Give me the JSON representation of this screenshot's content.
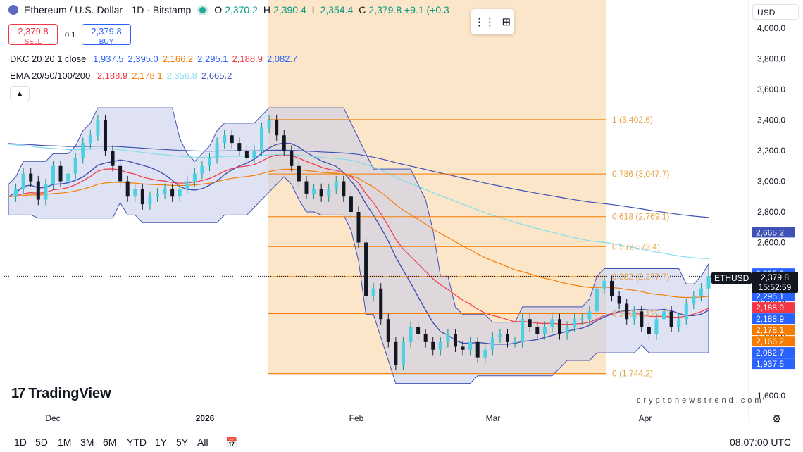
{
  "header": {
    "symbol": "Ethereum / U.S. Dollar · 1D · Bitstamp",
    "ohlc": [
      {
        "label": "O",
        "value": "2,370.2"
      },
      {
        "label": "H",
        "value": "2,390.4"
      },
      {
        "label": "L",
        "value": "2,354.4"
      },
      {
        "label": "C",
        "value": "2,379.8 +9.1 (+0.3"
      }
    ]
  },
  "trade": {
    "sell_price": "2,379.8",
    "sell_label": "SELL",
    "spread": "0.1",
    "buy_price": "2,379.8",
    "buy_label": "BUY"
  },
  "indicators": {
    "dkc": {
      "name": "DKC 20 20 1 close",
      "values": [
        "1,937.5",
        "2,395.0",
        "2,166.2",
        "2,295.1",
        "2,188.9",
        "2,082.7"
      ],
      "colors": [
        "#2962ff",
        "#2962ff",
        "#f57c00",
        "#2962ff",
        "#f23645",
        "#2962ff"
      ]
    },
    "ema": {
      "name": "EMA 20/50/100/200",
      "values": [
        "2,188.9",
        "2,178.1",
        "2,356.8",
        "2,665.2"
      ],
      "colors": [
        "#f23645",
        "#f57c00",
        "#80deea",
        "#3f51b5"
      ]
    }
  },
  "currency": "USD",
  "colors": {
    "up": "#089981",
    "down": "#131722",
    "accent": "#2962ff",
    "band_fill": "#c5cae9",
    "fib_zone": "#fbe2c0"
  },
  "chart_data": {
    "type": "candlestick",
    "x_ticks": [
      "Dec",
      "2026",
      "Feb",
      "Mar",
      "Apr"
    ],
    "ylim": [
      1600,
      4100
    ],
    "y_ticks": [
      "1,600.0",
      "1,800.0",
      "2,000.0",
      "2,200.0",
      "2,400.0",
      "2,600.0",
      "2,800.0",
      "3,000.0",
      "3,200.0",
      "3,400.0",
      "3,600.0",
      "3,800.0",
      "4,000.0"
    ],
    "y_tick_values": [
      1600,
      1800,
      2000,
      2200,
      2400,
      2600,
      2800,
      3000,
      3200,
      3400,
      3600,
      3800,
      4000
    ],
    "fib_levels": [
      {
        "label": "1 (3,402.6)",
        "value": 3402.6
      },
      {
        "label": "0.786 (3,047.7)",
        "value": 3047.7
      },
      {
        "label": "0.618 (2,769.1)",
        "value": 2769.1
      },
      {
        "label": "0.5 (2,573.4)",
        "value": 2573.4
      },
      {
        "label": "0.382 (2,377.7)",
        "value": 2377.7
      },
      {
        "label": "0.236 (2,135.6)",
        "value": 2135.6
      },
      {
        "label": "0 (1,744.2)",
        "value": 1744.2
      }
    ],
    "last_price": 2379.8,
    "countdown": "15:52:59",
    "symbol_tag": "ETHUSD",
    "price_tags": [
      {
        "label": "2,665.2",
        "value": 2665.2,
        "bg": "#3f51b5",
        "fg": "#ffffff"
      },
      {
        "label": "2,395.0",
        "value": 2395.0,
        "bg": "#2962ff",
        "fg": "#ffffff"
      },
      {
        "label": "2,356.8",
        "value": 2356.8,
        "bg": "#b2ebf2",
        "fg": "#131722"
      },
      {
        "label": "2,295.1",
        "value": 2295.1,
        "bg": "#2962ff",
        "fg": "#ffffff"
      },
      {
        "label": "2,188.9",
        "value": 2188.9,
        "bg": "#f23645",
        "fg": "#ffffff"
      },
      {
        "label": "2,188.9",
        "value": 2188.9,
        "bg": "#2962ff",
        "fg": "#ffffff"
      },
      {
        "label": "2,178.1",
        "value": 2178.1,
        "bg": "#f57c00",
        "fg": "#ffffff"
      },
      {
        "label": "2,166.2",
        "value": 2166.2,
        "bg": "#f57c00",
        "fg": "#ffffff"
      },
      {
        "label": "2,082.7",
        "value": 2082.7,
        "bg": "#2962ff",
        "fg": "#ffffff"
      },
      {
        "label": "1,937.5",
        "value": 1937.5,
        "bg": "#2962ff",
        "fg": "#ffffff"
      }
    ],
    "price_path": [
      2900,
      2950,
      3050,
      3000,
      2880,
      2980,
      3100,
      3000,
      3050,
      3150,
      3250,
      3300,
      3400,
      3200,
      3100,
      3000,
      2900,
      2950,
      2850,
      2900,
      2920,
      2950,
      2900,
      2950,
      3000,
      3050,
      3100,
      3150,
      3250,
      3300,
      3250,
      3200,
      3150,
      3200,
      3350,
      3400,
      3300,
      3200,
      3100,
      3000,
      2920,
      2950,
      2900,
      2950,
      3000,
      2900,
      2800,
      2600,
      2250,
      2300,
      2100,
      1950,
      1800,
      1950,
      2050,
      2000,
      1950,
      1900,
      1950,
      2000,
      1920,
      1900,
      1950,
      1850,
      1900,
      1980,
      2000,
      1950,
      1950,
      2100,
      2050,
      2000,
      2050,
      2100,
      2000,
      2050,
      2100,
      2100,
      2150,
      2300,
      2350,
      2250,
      2200,
      2100,
      2150,
      2050,
      2000,
      2100,
      2150,
      2050,
      2100,
      2200,
      2250,
      2300,
      2380
    ]
  },
  "timeframes": [
    "1D",
    "5D",
    "1M",
    "3M",
    "6M",
    "YTD",
    "1Y",
    "5Y",
    "All"
  ],
  "clock": "08:07:00 UTC",
  "branding": {
    "logo": "TradingView",
    "watermark": "cryptonewstrend.com"
  }
}
